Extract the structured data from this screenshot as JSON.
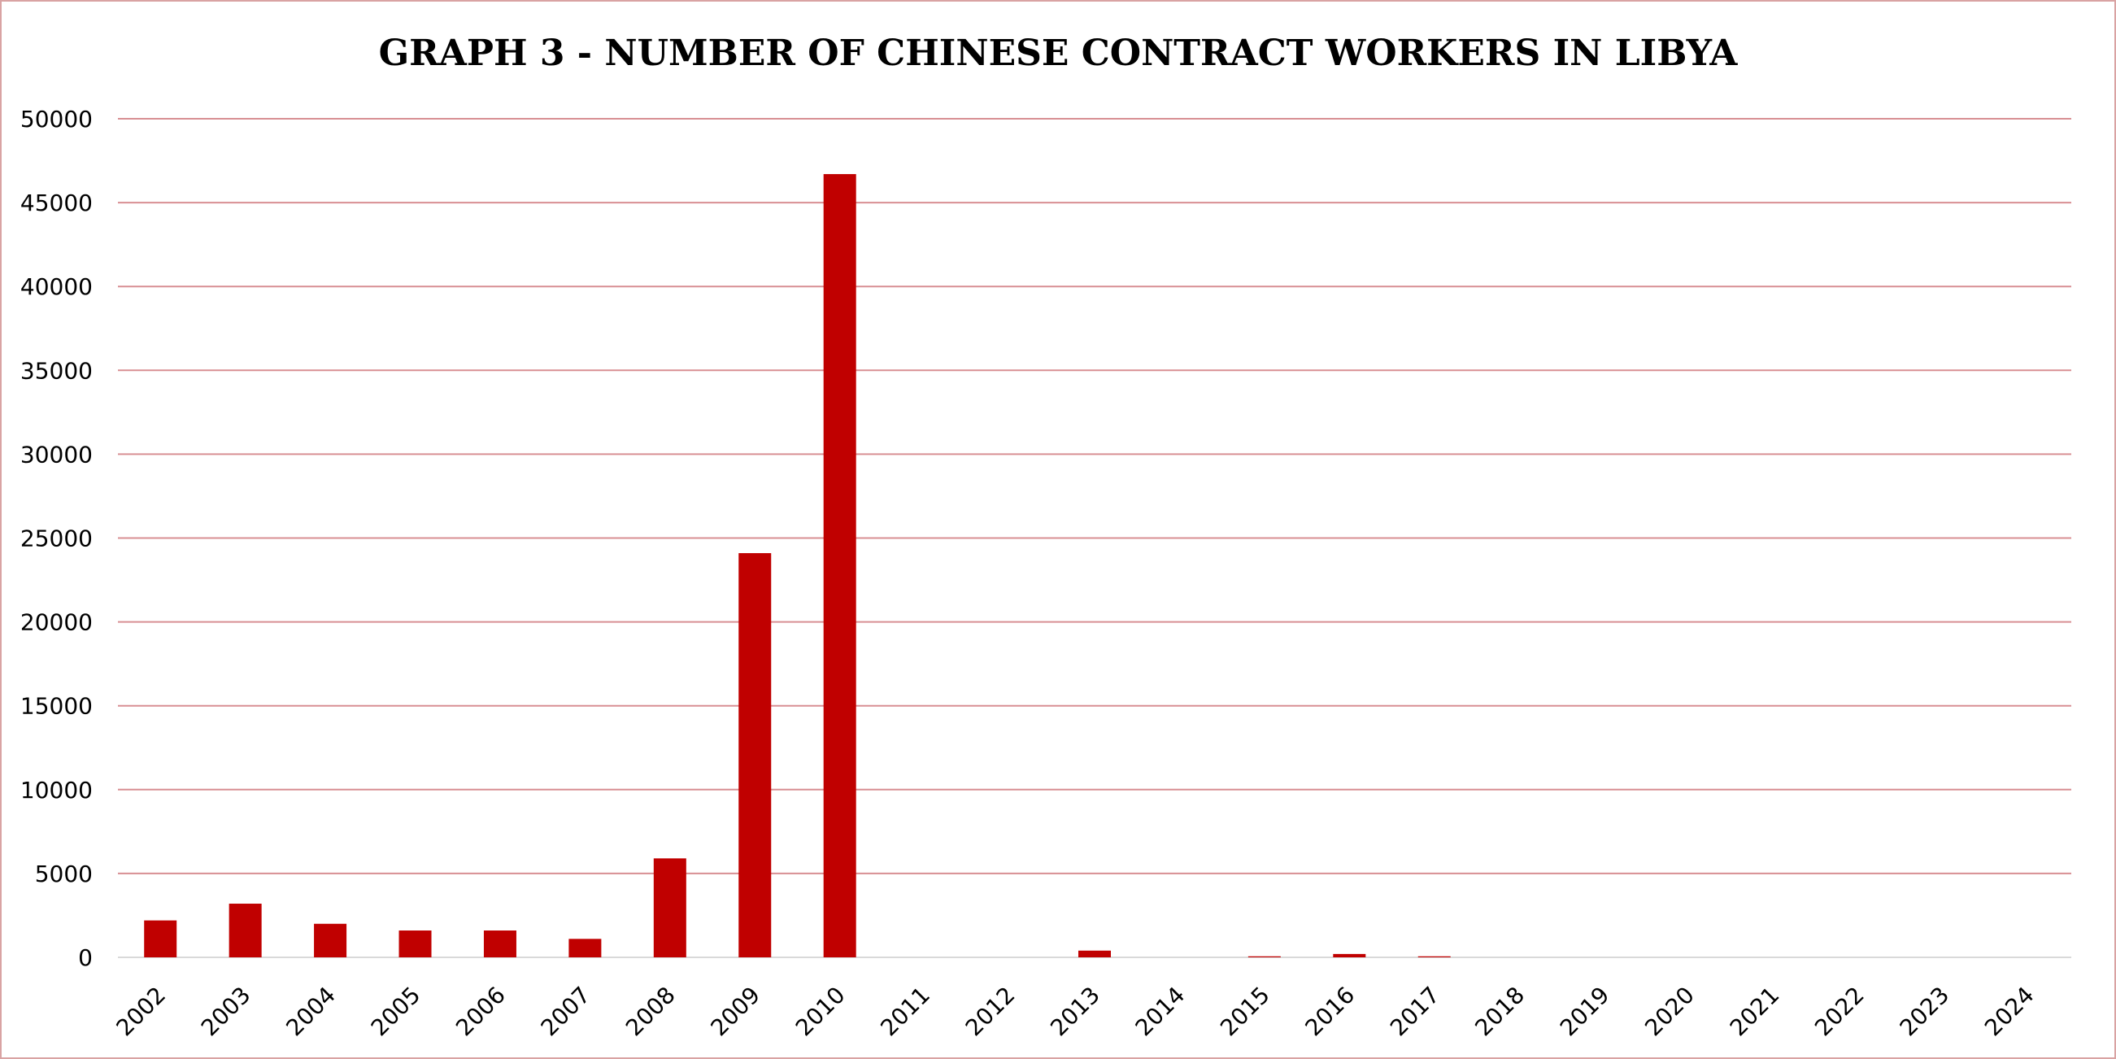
{
  "chart_data": {
    "type": "bar",
    "title": "GRAPH 3 - NUMBER OF CHINESE CONTRACT WORKERS IN LIBYA",
    "xlabel": "",
    "ylabel": "",
    "categories": [
      "2002",
      "2003",
      "2004",
      "2005",
      "2006",
      "2007",
      "2008",
      "2009",
      "2010",
      "2011",
      "2012",
      "2013",
      "2014",
      "2015",
      "2016",
      "2017",
      "2018",
      "2019",
      "2020",
      "2021",
      "2022",
      "2023",
      "2024"
    ],
    "values": [
      2200,
      3200,
      2000,
      1600,
      1600,
      1100,
      5900,
      24100,
      46700,
      0,
      0,
      400,
      0,
      60,
      200,
      60,
      0,
      0,
      0,
      0,
      0,
      0,
      0
    ],
    "ylim": [
      0,
      50000
    ],
    "yticks": [
      0,
      5000,
      10000,
      15000,
      20000,
      25000,
      30000,
      35000,
      40000,
      45000,
      50000
    ],
    "grid": true,
    "legend": "none",
    "colors": {
      "bar": "#c00000",
      "grid": "#d88f93",
      "frame": "#d9a3a3",
      "baseline": "#d9d9d9"
    }
  }
}
